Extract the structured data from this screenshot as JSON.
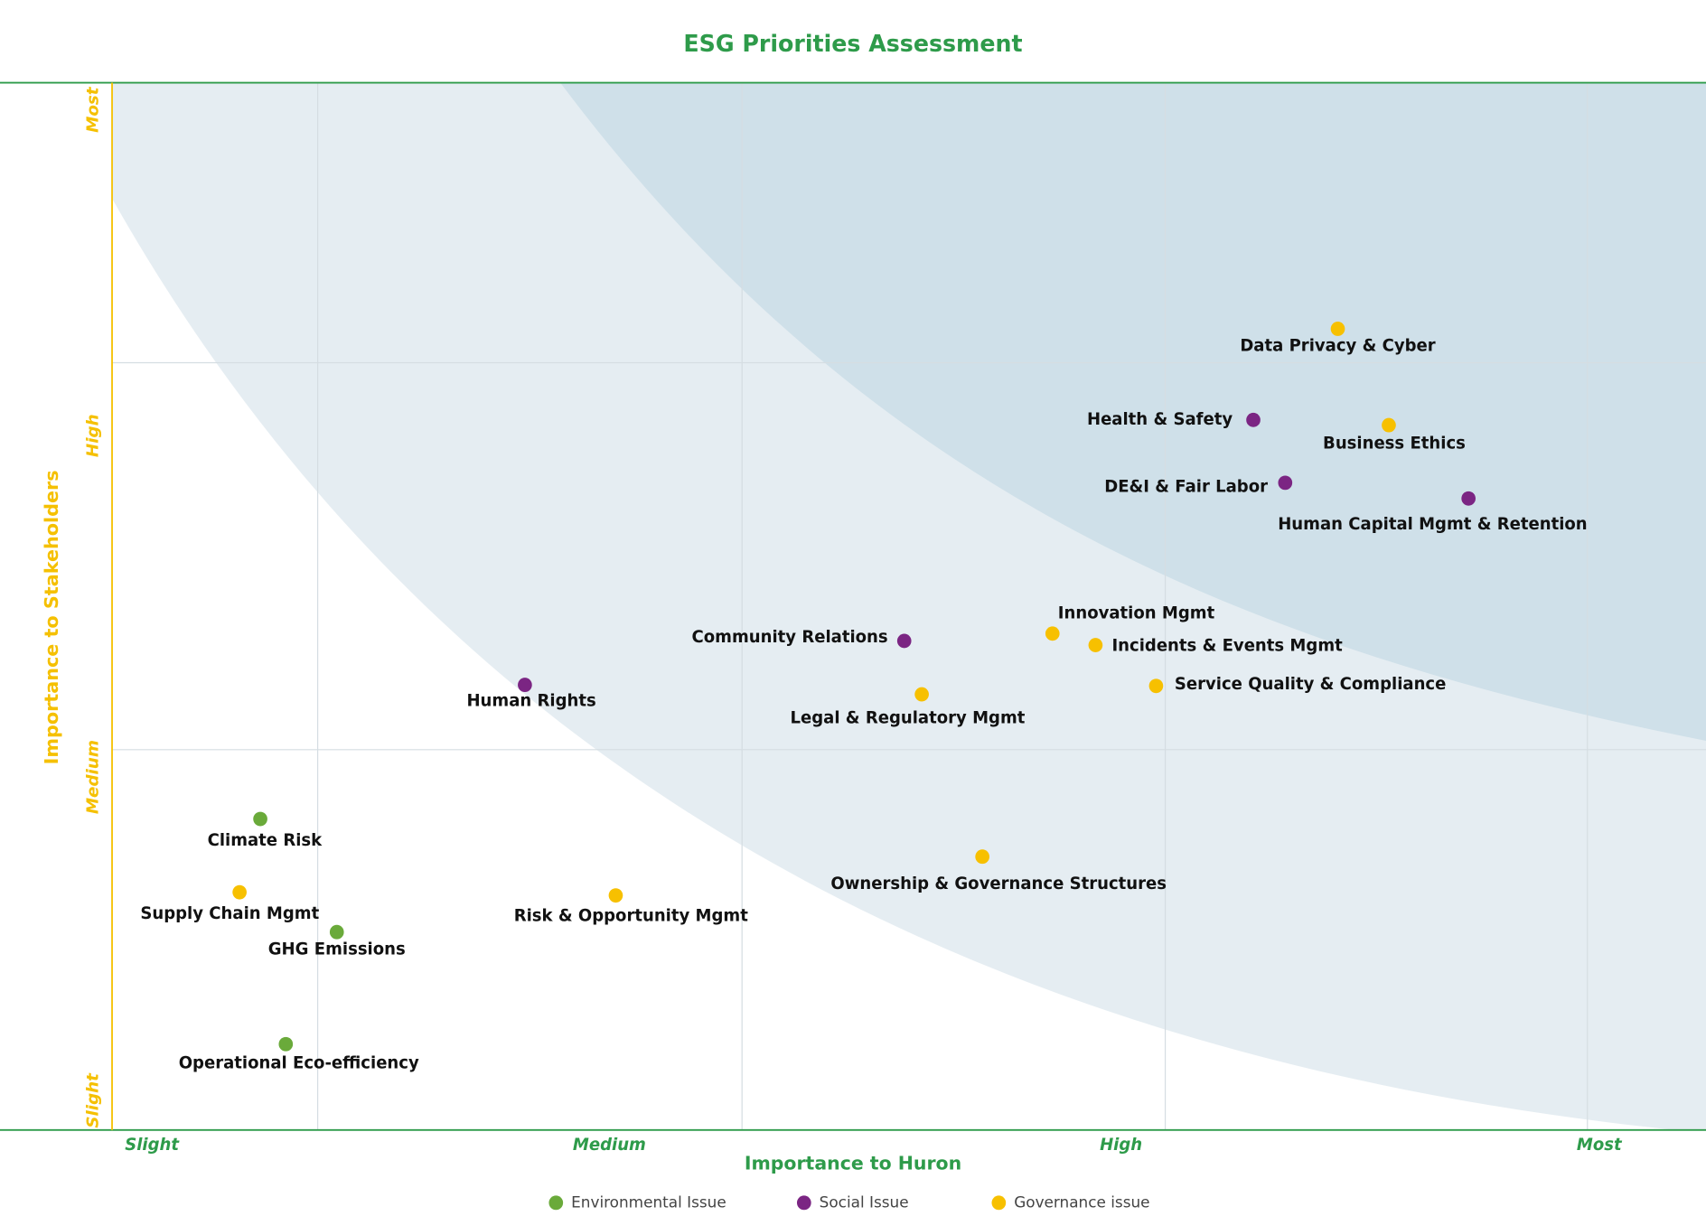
{
  "chart_data": {
    "type": "scatter",
    "title": "ESG Priorities Assessment",
    "x_label": "Importance to Huron",
    "y_label": "Importance to Stakeholders",
    "xlim": [
      0,
      10
    ],
    "ylim": [
      0,
      10
    ],
    "xticks": [
      {
        "value": 0.25,
        "label": "Slight"
      },
      {
        "value": 3.12,
        "label": "Medium"
      },
      {
        "value": 6.33,
        "label": "High"
      },
      {
        "value": 9.33,
        "label": "Most"
      }
    ],
    "yticks": [
      {
        "value": 0.28,
        "label": "Slight"
      },
      {
        "value": 3.37,
        "label": "Medium"
      },
      {
        "value": 6.63,
        "label": "High"
      },
      {
        "value": 9.74,
        "label": "Most"
      }
    ],
    "series": [
      {
        "name": "Environmental Issue",
        "color": "#6aaa3a",
        "labels": [
          "Climate Risk",
          "GHG Emissions",
          "Operational Eco-efficiency"
        ],
        "x": [
          0.93,
          1.41,
          1.09
        ],
        "y": [
          2.97,
          1.89,
          0.82
        ]
      },
      {
        "name": "Social Issue",
        "color": "#7b2583",
        "labels": [
          "Health & Safety",
          "DE&I & Fair Labor",
          "Human Capital Mgmt & Retention",
          "Community Relations",
          "Human Rights"
        ],
        "x": [
          7.16,
          7.36,
          8.51,
          4.97,
          2.59
        ],
        "y": [
          6.78,
          6.18,
          6.03,
          4.67,
          4.25
        ]
      },
      {
        "name": "Governance issue",
        "color": "#f7c000",
        "labels": [
          "Data Privacy & Cyber",
          "Business Ethics",
          "Innovation Mgmt",
          "Incidents & Events Mgmt",
          "Service Quality & Compliance",
          "Legal & Regulatory Mgmt",
          "Ownership & Governance Structures",
          "Supply Chain Mgmt",
          "Risk & Opportunity Mgmt"
        ],
        "x": [
          7.69,
          8.01,
          5.9,
          6.17,
          6.55,
          5.08,
          5.46,
          0.8,
          3.16
        ],
        "y": [
          7.65,
          6.73,
          4.74,
          4.63,
          4.24,
          4.16,
          2.61,
          2.27,
          2.24
        ]
      }
    ]
  }
}
